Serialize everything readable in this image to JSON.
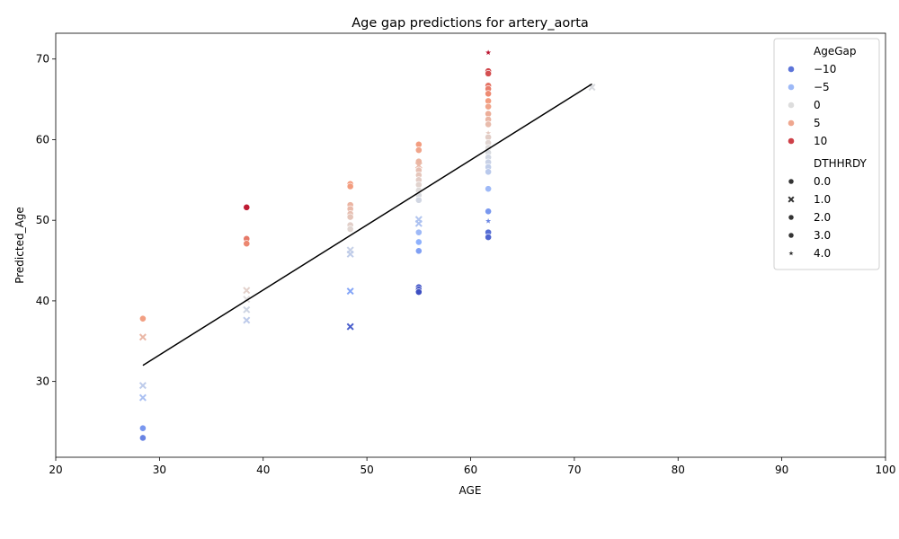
{
  "chart_data": {
    "type": "scatter",
    "title": "Age gap predictions for artery_aorta",
    "xlabel": "AGE",
    "ylabel": "Predicted_Age",
    "xlim": [
      20,
      100
    ],
    "ylim": [
      20.6,
      73.2
    ],
    "xticks": [
      20,
      30,
      40,
      50,
      60,
      70,
      80,
      90,
      100
    ],
    "yticks": [
      30,
      40,
      50,
      60,
      70
    ],
    "grid": false,
    "legend_placement": "top-right",
    "hue": {
      "title": "AgeGap",
      "range": [
        -12.5,
        12.5
      ],
      "colormap": "coolwarm",
      "entries": [
        {
          "label": "−10",
          "value": -10
        },
        {
          "label": "−5",
          "value": -5
        },
        {
          "label": "0",
          "value": 0
        },
        {
          "label": "5",
          "value": 5
        },
        {
          "label": "10",
          "value": 10
        }
      ]
    },
    "style": {
      "title": "DTHHRDY",
      "entries": [
        {
          "label": "0.0",
          "marker": "circle"
        },
        {
          "label": "1.0",
          "marker": "x"
        },
        {
          "label": "2.0",
          "marker": "circle"
        },
        {
          "label": "3.0",
          "marker": "circle"
        },
        {
          "label": "4.0",
          "marker": "star"
        }
      ]
    },
    "fit_line": {
      "x": [
        28.4,
        71.7
      ],
      "y": [
        32.0,
        66.9
      ],
      "color": "#000000"
    },
    "points": [
      {
        "x": 28.4,
        "y": 37.8,
        "m": "circle"
      },
      {
        "x": 28.4,
        "y": 35.5,
        "m": "x"
      },
      {
        "x": 28.4,
        "y": 29.5,
        "m": "x"
      },
      {
        "x": 28.4,
        "y": 28.0,
        "m": "x"
      },
      {
        "x": 28.4,
        "y": 24.2,
        "m": "circle"
      },
      {
        "x": 28.4,
        "y": 23.0,
        "m": "circle"
      },
      {
        "x": 38.4,
        "y": 51.6,
        "m": "circle"
      },
      {
        "x": 38.4,
        "y": 47.7,
        "m": "circle"
      },
      {
        "x": 38.4,
        "y": 47.1,
        "m": "circle"
      },
      {
        "x": 38.4,
        "y": 41.3,
        "m": "x"
      },
      {
        "x": 38.4,
        "y": 40.2,
        "m": "x"
      },
      {
        "x": 38.4,
        "y": 38.9,
        "m": "x"
      },
      {
        "x": 38.4,
        "y": 37.6,
        "m": "x"
      },
      {
        "x": 48.4,
        "y": 54.5,
        "m": "circle"
      },
      {
        "x": 48.4,
        "y": 54.2,
        "m": "circle"
      },
      {
        "x": 48.4,
        "y": 51.9,
        "m": "circle"
      },
      {
        "x": 48.4,
        "y": 51.4,
        "m": "circle"
      },
      {
        "x": 48.4,
        "y": 50.8,
        "m": "circle"
      },
      {
        "x": 48.4,
        "y": 50.4,
        "m": "circle"
      },
      {
        "x": 48.4,
        "y": 49.4,
        "m": "circle"
      },
      {
        "x": 48.4,
        "y": 48.9,
        "m": "circle"
      },
      {
        "x": 48.4,
        "y": 46.3,
        "m": "x"
      },
      {
        "x": 48.4,
        "y": 45.8,
        "m": "x"
      },
      {
        "x": 48.4,
        "y": 41.2,
        "m": "x"
      },
      {
        "x": 48.4,
        "y": 36.8,
        "m": "x"
      },
      {
        "x": 55.0,
        "y": 59.4,
        "m": "circle"
      },
      {
        "x": 55.0,
        "y": 58.7,
        "m": "circle"
      },
      {
        "x": 55.0,
        "y": 57.3,
        "m": "circle"
      },
      {
        "x": 55.0,
        "y": 56.8,
        "m": "x"
      },
      {
        "x": 55.0,
        "y": 56.2,
        "m": "circle"
      },
      {
        "x": 55.0,
        "y": 55.6,
        "m": "circle"
      },
      {
        "x": 55.0,
        "y": 55.0,
        "m": "circle"
      },
      {
        "x": 55.0,
        "y": 54.4,
        "m": "circle"
      },
      {
        "x": 55.0,
        "y": 53.7,
        "m": "circle"
      },
      {
        "x": 55.0,
        "y": 53.1,
        "m": "circle"
      },
      {
        "x": 55.0,
        "y": 52.5,
        "m": "circle"
      },
      {
        "x": 55.0,
        "y": 50.1,
        "m": "x"
      },
      {
        "x": 55.0,
        "y": 49.6,
        "m": "x"
      },
      {
        "x": 55.0,
        "y": 48.5,
        "m": "circle"
      },
      {
        "x": 55.0,
        "y": 47.3,
        "m": "circle"
      },
      {
        "x": 55.0,
        "y": 46.2,
        "m": "circle"
      },
      {
        "x": 55.0,
        "y": 41.7,
        "m": "circle"
      },
      {
        "x": 55.0,
        "y": 41.4,
        "m": "circle"
      },
      {
        "x": 55.0,
        "y": 41.1,
        "m": "circle"
      },
      {
        "x": 61.7,
        "y": 70.8,
        "m": "star"
      },
      {
        "x": 61.7,
        "y": 68.5,
        "m": "circle"
      },
      {
        "x": 61.7,
        "y": 68.2,
        "m": "circle"
      },
      {
        "x": 61.7,
        "y": 66.7,
        "m": "circle"
      },
      {
        "x": 61.7,
        "y": 66.3,
        "m": "circle"
      },
      {
        "x": 61.7,
        "y": 65.7,
        "m": "circle"
      },
      {
        "x": 61.7,
        "y": 64.8,
        "m": "circle"
      },
      {
        "x": 61.7,
        "y": 64.1,
        "m": "circle"
      },
      {
        "x": 61.7,
        "y": 63.2,
        "m": "circle"
      },
      {
        "x": 61.7,
        "y": 62.5,
        "m": "circle"
      },
      {
        "x": 61.7,
        "y": 61.9,
        "m": "circle"
      },
      {
        "x": 61.7,
        "y": 60.8,
        "m": "star"
      },
      {
        "x": 61.7,
        "y": 60.3,
        "m": "circle"
      },
      {
        "x": 61.7,
        "y": 59.6,
        "m": "circle"
      },
      {
        "x": 61.7,
        "y": 59.0,
        "m": "circle"
      },
      {
        "x": 61.7,
        "y": 58.4,
        "m": "circle"
      },
      {
        "x": 61.7,
        "y": 57.8,
        "m": "circle"
      },
      {
        "x": 61.7,
        "y": 57.2,
        "m": "circle"
      },
      {
        "x": 61.7,
        "y": 56.6,
        "m": "circle"
      },
      {
        "x": 61.7,
        "y": 56.0,
        "m": "circle"
      },
      {
        "x": 61.7,
        "y": 53.9,
        "m": "circle"
      },
      {
        "x": 61.7,
        "y": 51.1,
        "m": "circle"
      },
      {
        "x": 61.7,
        "y": 49.9,
        "m": "star"
      },
      {
        "x": 61.7,
        "y": 48.5,
        "m": "circle"
      },
      {
        "x": 61.7,
        "y": 47.9,
        "m": "circle"
      },
      {
        "x": 71.7,
        "y": 66.5,
        "m": "x"
      }
    ]
  }
}
